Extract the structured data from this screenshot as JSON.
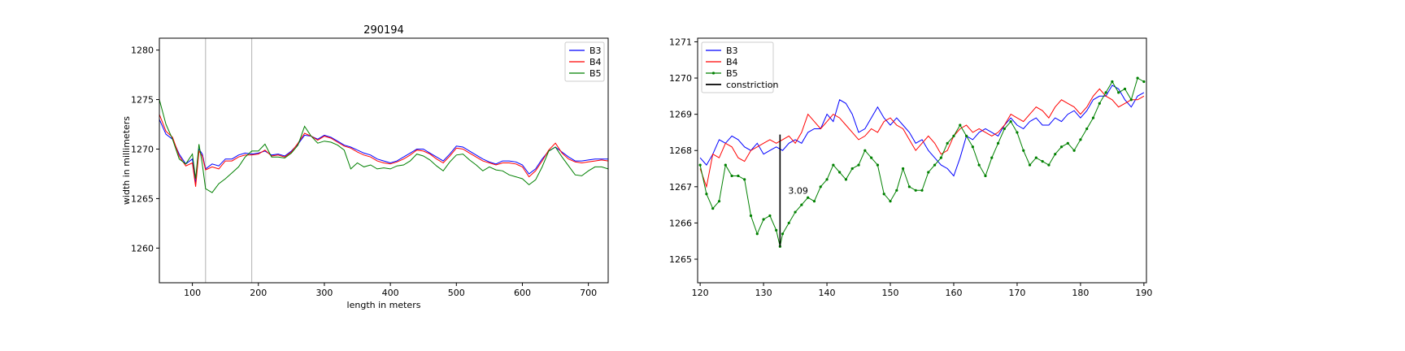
{
  "chart_data": [
    {
      "type": "line",
      "title": "290194",
      "xlabel": "length in meters",
      "ylabel": "width in millimeters",
      "xlim": [
        50,
        730
      ],
      "ylim": [
        1256.5,
        1281.2
      ],
      "xticks": [
        100,
        200,
        300,
        400,
        500,
        600,
        700
      ],
      "yticks": [
        1260,
        1265,
        1270,
        1275,
        1280
      ],
      "vlines": [
        120,
        190
      ],
      "legend": "top-right",
      "series": [
        {
          "name": "B3",
          "color": "#0000ff",
          "x": [
            50,
            60,
            70,
            80,
            90,
            100,
            105,
            110,
            115,
            120,
            130,
            140,
            150,
            160,
            170,
            180,
            190,
            200,
            210,
            220,
            230,
            240,
            250,
            260,
            270,
            280,
            290,
            300,
            310,
            320,
            330,
            340,
            350,
            360,
            370,
            380,
            390,
            400,
            410,
            420,
            430,
            440,
            450,
            460,
            470,
            480,
            490,
            500,
            510,
            520,
            530,
            540,
            550,
            560,
            570,
            580,
            590,
            600,
            610,
            620,
            630,
            640,
            650,
            660,
            670,
            680,
            690,
            700,
            710,
            720,
            730
          ],
          "y": [
            1273,
            1271.5,
            1271,
            1269.5,
            1268.5,
            1269,
            1266.5,
            1270,
            1269.5,
            1268,
            1268.5,
            1268.3,
            1269,
            1269,
            1269.4,
            1269.6,
            1269.5,
            1269.6,
            1269.8,
            1269.4,
            1269.5,
            1269.3,
            1269.8,
            1270.5,
            1271.4,
            1271.3,
            1271,
            1271.4,
            1271.2,
            1270.8,
            1270.4,
            1270.2,
            1269.9,
            1269.6,
            1269.4,
            1269,
            1268.8,
            1268.6,
            1268.8,
            1269.2,
            1269.6,
            1270,
            1270,
            1269.6,
            1269.2,
            1268.8,
            1269.5,
            1270.3,
            1270.2,
            1269.8,
            1269.4,
            1269,
            1268.7,
            1268.5,
            1268.8,
            1268.8,
            1268.7,
            1268.4,
            1267.5,
            1268,
            1269,
            1269.8,
            1270.2,
            1269.7,
            1269.2,
            1268.8,
            1268.8,
            1268.9,
            1269,
            1269,
            1269
          ]
        },
        {
          "name": "B4",
          "color": "#ff0000",
          "x": [
            50,
            60,
            70,
            80,
            90,
            100,
            105,
            110,
            115,
            120,
            130,
            140,
            150,
            160,
            170,
            180,
            190,
            200,
            210,
            220,
            230,
            240,
            250,
            260,
            270,
            280,
            290,
            300,
            310,
            320,
            330,
            340,
            350,
            360,
            370,
            380,
            390,
            400,
            410,
            420,
            430,
            440,
            450,
            460,
            470,
            480,
            490,
            500,
            510,
            520,
            530,
            540,
            550,
            560,
            570,
            580,
            590,
            600,
            610,
            620,
            630,
            640,
            650,
            660,
            670,
            680,
            690,
            700,
            710,
            720,
            730
          ],
          "y": [
            1273.5,
            1271.8,
            1271.2,
            1269.3,
            1268.3,
            1268.6,
            1266.2,
            1269.8,
            1269.3,
            1267.9,
            1268.2,
            1268,
            1268.8,
            1268.8,
            1269.2,
            1269.4,
            1269.4,
            1269.5,
            1269.9,
            1269.3,
            1269.4,
            1269.2,
            1269.7,
            1270.6,
            1271.6,
            1271.3,
            1270.9,
            1271.3,
            1271.1,
            1270.7,
            1270.3,
            1270.1,
            1269.7,
            1269.4,
            1269.2,
            1268.8,
            1268.6,
            1268.5,
            1268.7,
            1269,
            1269.4,
            1269.9,
            1269.8,
            1269.5,
            1269,
            1268.6,
            1269.3,
            1270.1,
            1270,
            1269.6,
            1269.2,
            1268.8,
            1268.6,
            1268.4,
            1268.6,
            1268.6,
            1268.5,
            1268.2,
            1267.2,
            1267.8,
            1268.8,
            1269.9,
            1270.6,
            1269.6,
            1269,
            1268.7,
            1268.6,
            1268.7,
            1268.8,
            1268.9,
            1268.8
          ]
        },
        {
          "name": "B5",
          "color": "#008000",
          "x": [
            50,
            60,
            70,
            80,
            90,
            100,
            105,
            110,
            115,
            120,
            130,
            140,
            150,
            160,
            170,
            180,
            190,
            200,
            210,
            220,
            230,
            240,
            250,
            260,
            270,
            280,
            290,
            300,
            310,
            320,
            330,
            340,
            350,
            360,
            370,
            380,
            390,
            400,
            410,
            420,
            430,
            440,
            450,
            460,
            470,
            480,
            490,
            500,
            510,
            520,
            530,
            540,
            550,
            560,
            570,
            580,
            590,
            600,
            610,
            620,
            630,
            640,
            650,
            660,
            670,
            680,
            690,
            700,
            710,
            720,
            730
          ],
          "y": [
            1275,
            1272.5,
            1271,
            1269,
            1268.5,
            1269.5,
            1267,
            1270.5,
            1268.5,
            1266,
            1265.6,
            1266.5,
            1267,
            1267.6,
            1268.2,
            1269.2,
            1269.8,
            1269.8,
            1270.5,
            1269.2,
            1269.2,
            1269.1,
            1269.6,
            1270.4,
            1272.3,
            1271.3,
            1270.6,
            1270.8,
            1270.7,
            1270.4,
            1269.9,
            1268,
            1268.6,
            1268.2,
            1268.4,
            1268,
            1268.1,
            1268,
            1268.3,
            1268.4,
            1268.8,
            1269.5,
            1269.3,
            1268.9,
            1268.3,
            1267.8,
            1268.7,
            1269.4,
            1269.5,
            1268.9,
            1268.4,
            1267.8,
            1268.2,
            1267.9,
            1267.8,
            1267.4,
            1267.2,
            1267,
            1266.4,
            1266.9,
            1268.2,
            1269.8,
            1270.2,
            1269.2,
            1268.3,
            1267.4,
            1267.3,
            1267.8,
            1268.2,
            1268.2,
            1268
          ]
        }
      ]
    },
    {
      "type": "line",
      "title": "",
      "xlabel": "",
      "ylabel": "",
      "xlim": [
        119.6,
        190.4
      ],
      "ylim": [
        1264.35,
        1271.1
      ],
      "xticks": [
        120,
        130,
        140,
        150,
        160,
        170,
        180,
        190
      ],
      "yticks": [
        1265,
        1266,
        1267,
        1268,
        1269,
        1270,
        1271
      ],
      "legend": "top-left",
      "series": [
        {
          "name": "B3",
          "color": "#0000ff",
          "x": [
            120,
            121,
            122,
            123,
            124,
            125,
            126,
            127,
            128,
            129,
            130,
            131,
            132,
            133,
            134,
            135,
            136,
            137,
            138,
            139,
            140,
            141,
            142,
            143,
            144,
            145,
            146,
            147,
            148,
            149,
            150,
            151,
            152,
            153,
            154,
            155,
            156,
            157,
            158,
            159,
            160,
            161,
            162,
            163,
            164,
            165,
            166,
            167,
            168,
            169,
            170,
            171,
            172,
            173,
            174,
            175,
            176,
            177,
            178,
            179,
            180,
            181,
            182,
            183,
            184,
            185,
            186,
            187,
            188,
            189,
            190
          ],
          "y": [
            1267.8,
            1267.6,
            1267.9,
            1268.3,
            1268.2,
            1268.4,
            1268.3,
            1268.1,
            1268,
            1268.2,
            1267.9,
            1268,
            1268.1,
            1268,
            1268.2,
            1268.3,
            1268.2,
            1268.5,
            1268.6,
            1268.6,
            1269,
            1268.8,
            1269.4,
            1269.3,
            1269,
            1268.5,
            1268.6,
            1268.9,
            1269.2,
            1268.9,
            1268.7,
            1268.9,
            1268.7,
            1268.5,
            1268.2,
            1268.3,
            1268,
            1267.8,
            1267.6,
            1267.5,
            1267.3,
            1267.8,
            1268.4,
            1268.3,
            1268.5,
            1268.6,
            1268.5,
            1268.4,
            1268.7,
            1268.9,
            1268.7,
            1268.6,
            1268.8,
            1268.9,
            1268.7,
            1268.7,
            1268.9,
            1268.8,
            1269,
            1269.1,
            1268.9,
            1269.1,
            1269.4,
            1269.5,
            1269.5,
            1269.8,
            1269.7,
            1269.4,
            1269.2,
            1269.5,
            1269.6
          ]
        },
        {
          "name": "B4",
          "color": "#ff0000",
          "x": [
            120,
            121,
            122,
            123,
            124,
            125,
            126,
            127,
            128,
            129,
            130,
            131,
            132,
            133,
            134,
            135,
            136,
            137,
            138,
            139,
            140,
            141,
            142,
            143,
            144,
            145,
            146,
            147,
            148,
            149,
            150,
            151,
            152,
            153,
            154,
            155,
            156,
            157,
            158,
            159,
            160,
            161,
            162,
            163,
            164,
            165,
            166,
            167,
            168,
            169,
            170,
            171,
            172,
            173,
            174,
            175,
            176,
            177,
            178,
            179,
            180,
            181,
            182,
            183,
            184,
            185,
            186,
            187,
            188,
            189,
            190
          ],
          "y": [
            1267.5,
            1267,
            1267.9,
            1267.8,
            1268.2,
            1268.1,
            1267.8,
            1267.7,
            1268,
            1268.1,
            1268.2,
            1268.3,
            1268.2,
            1268.3,
            1268.4,
            1268.2,
            1268.5,
            1269,
            1268.8,
            1268.6,
            1268.8,
            1269,
            1268.9,
            1268.7,
            1268.5,
            1268.3,
            1268.4,
            1268.6,
            1268.5,
            1268.8,
            1268.9,
            1268.7,
            1268.6,
            1268.3,
            1268,
            1268.2,
            1268.4,
            1268.2,
            1267.9,
            1268,
            1268.4,
            1268.6,
            1268.7,
            1268.5,
            1268.6,
            1268.5,
            1268.4,
            1268.5,
            1268.7,
            1269,
            1268.9,
            1268.8,
            1269,
            1269.2,
            1269.1,
            1268.9,
            1269.2,
            1269.4,
            1269.3,
            1269.2,
            1269,
            1269.2,
            1269.5,
            1269.7,
            1269.5,
            1269.4,
            1269.2,
            1269.3,
            1269.4,
            1269.4,
            1269.5
          ]
        },
        {
          "name": "B5",
          "color": "#008000",
          "x": [
            120,
            121,
            122,
            123,
            124,
            125,
            126,
            127,
            128,
            129,
            130,
            131,
            132,
            132.6,
            133,
            134,
            135,
            136,
            137,
            138,
            139,
            140,
            141,
            142,
            143,
            144,
            145,
            146,
            147,
            148,
            149,
            150,
            151,
            152,
            153,
            154,
            155,
            156,
            157,
            158,
            159,
            160,
            161,
            162,
            163,
            164,
            165,
            166,
            167,
            168,
            169,
            170,
            171,
            172,
            173,
            174,
            175,
            176,
            177,
            178,
            179,
            180,
            181,
            182,
            183,
            184,
            185,
            186,
            187,
            188,
            189,
            190
          ],
          "y": [
            1267.6,
            1266.8,
            1266.4,
            1266.6,
            1267.6,
            1267.3,
            1267.3,
            1267.2,
            1266.2,
            1265.7,
            1266.1,
            1266.2,
            1265.8,
            1265.35,
            1265.7,
            1266,
            1266.3,
            1266.5,
            1266.7,
            1266.6,
            1267,
            1267.2,
            1267.6,
            1267.4,
            1267.2,
            1267.5,
            1267.6,
            1268,
            1267.8,
            1267.6,
            1266.8,
            1266.6,
            1266.9,
            1267.5,
            1267,
            1266.9,
            1266.9,
            1267.4,
            1267.6,
            1267.8,
            1268.2,
            1268.4,
            1268.7,
            1268.4,
            1268.1,
            1267.6,
            1267.3,
            1267.8,
            1268.2,
            1268.6,
            1268.8,
            1268.5,
            1268,
            1267.6,
            1267.8,
            1267.7,
            1267.6,
            1267.9,
            1268.1,
            1268.2,
            1268,
            1268.3,
            1268.6,
            1268.9,
            1269.3,
            1269.6,
            1269.9,
            1269.6,
            1269.7,
            1269.4,
            1270,
            1269.9
          ]
        }
      ],
      "constriction": {
        "label": "constriction",
        "x": 132.6,
        "y_low": 1265.35,
        "y_high": 1268.44,
        "annotation": "3.09",
        "color": "#000000"
      }
    }
  ]
}
